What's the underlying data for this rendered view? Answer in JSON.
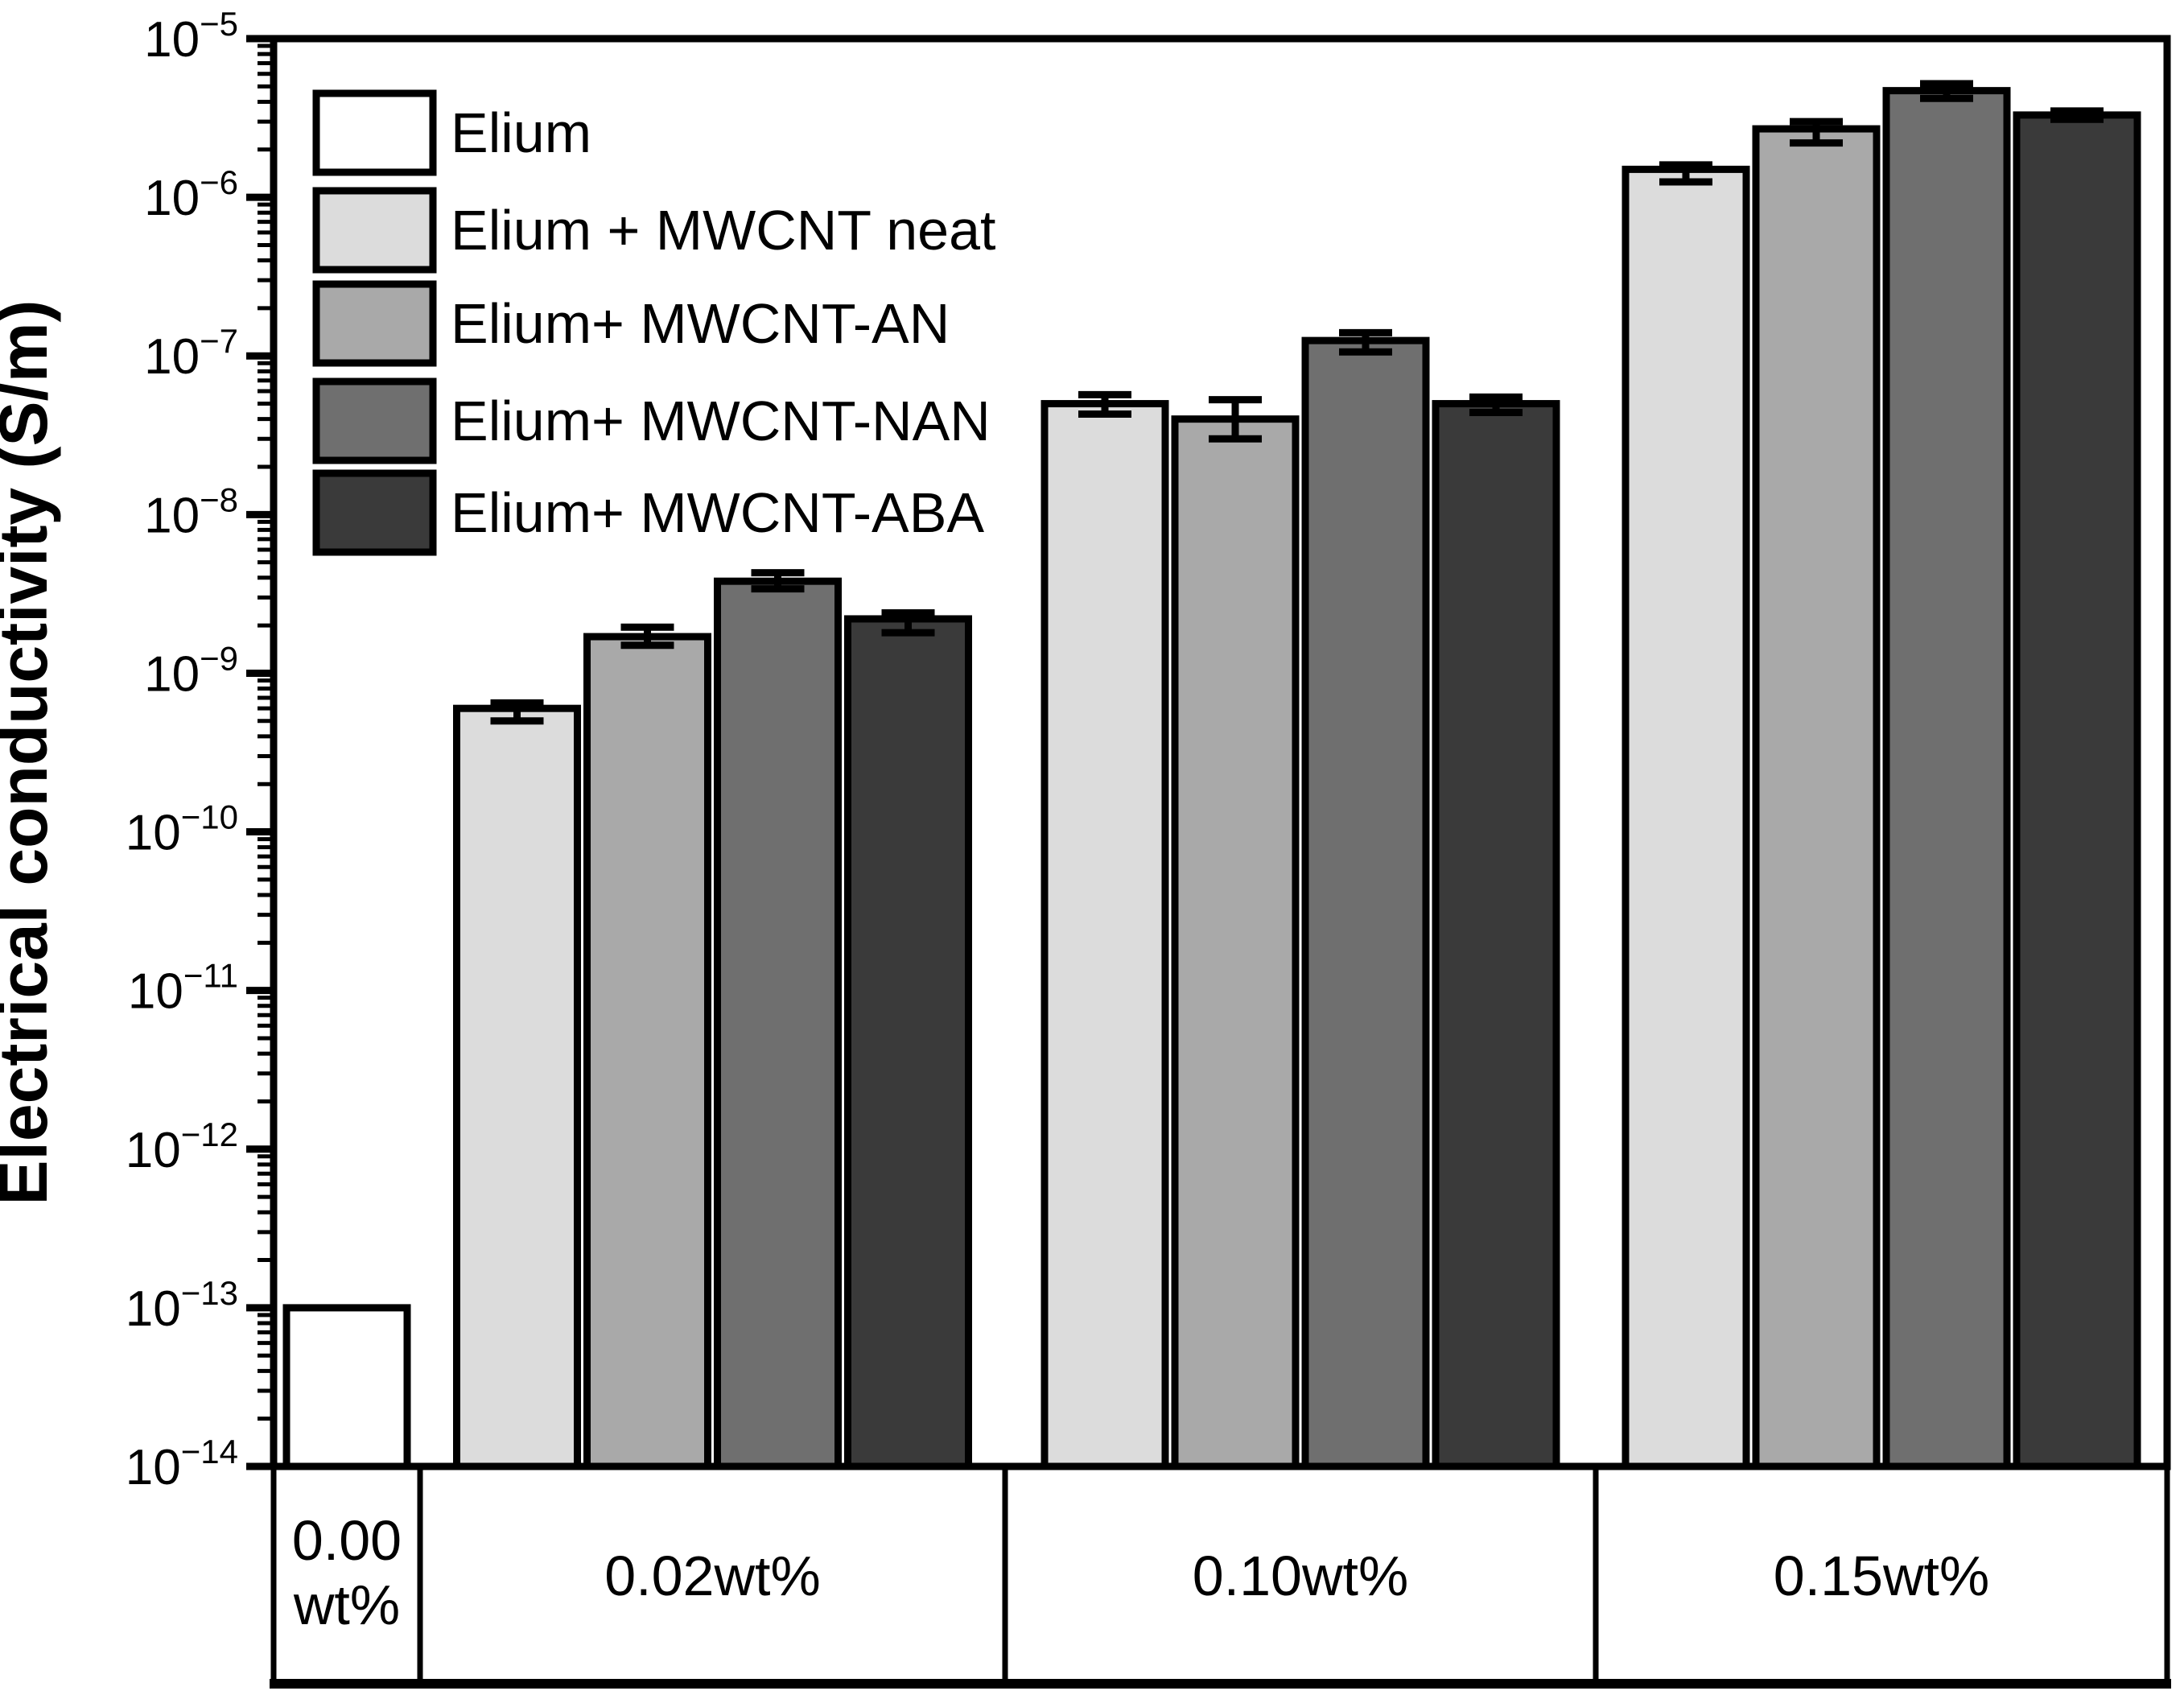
{
  "figure": {
    "kind": "grouped bar chart, logarithmic y axis",
    "background": "#ffffff",
    "frame_color": "#000000"
  },
  "y_axis": {
    "label": "Electrical conductivity (S/m)",
    "scale": "log",
    "max_exponent": -5,
    "min_exponent": -14,
    "tick_exponents": [
      -5,
      -6,
      -7,
      -8,
      -9,
      -10,
      -11,
      -12,
      -13,
      -14
    ],
    "minor_ticks_per_decade": [
      2,
      3,
      4,
      5,
      6,
      7,
      8,
      9
    ]
  },
  "x_axis": {
    "group_labels": [
      "0.00 wt%",
      "0.02wt%",
      "0.10wt%",
      "0.15wt%"
    ],
    "group_label_lines": [
      [
        "0.00",
        "wt%"
      ],
      [
        "0.02wt%"
      ],
      [
        "0.10wt%"
      ],
      [
        "0.15wt%"
      ]
    ]
  },
  "legend": {
    "items": [
      {
        "label": "Elium",
        "color": "#ffffff"
      },
      {
        "label": "Elium + MWCNT neat",
        "color": "#dcdcdc"
      },
      {
        "label": "Elium+ MWCNT-AN",
        "color": "#a9a9a9"
      },
      {
        "label": "Elium+ MWCNT-NAN",
        "color": "#6f6f6f"
      },
      {
        "label": "Elium+ MWCNT-ABA",
        "color": "#3a3a3a"
      }
    ]
  },
  "chart_data": {
    "type": "bar",
    "title": "",
    "xlabel": "",
    "ylabel": "Electrical conductivity (S/m)",
    "yscale": "log",
    "ylim": [
      1e-14,
      1e-05
    ],
    "grid": false,
    "legend_position": "upper-left inside plot",
    "categories": [
      "0.00 wt%",
      "0.02wt%",
      "0.10wt%",
      "0.15wt%"
    ],
    "series": [
      {
        "name": "Elium",
        "short": "elium",
        "color": "#ffffff",
        "values": [
          1e-13,
          null,
          null,
          null
        ]
      },
      {
        "name": "Elium + MWCNT neat",
        "short": "neat",
        "color": "#dcdcdc",
        "values": [
          null,
          6e-10,
          5e-08,
          1.5e-06
        ]
      },
      {
        "name": "Elium+ MWCNT-AN",
        "short": "an",
        "color": "#a9a9a9",
        "values": [
          null,
          1.7e-09,
          4e-08,
          2.7e-06
        ]
      },
      {
        "name": "Elium+ MWCNT-NAN",
        "short": "nan",
        "color": "#6f6f6f",
        "values": [
          null,
          3.8e-09,
          1.25e-07,
          4.7e-06
        ]
      },
      {
        "name": "Elium+ MWCNT-ABA",
        "short": "aba",
        "color": "#3a3a3a",
        "values": [
          null,
          2.2e-09,
          5e-08,
          3.3e-06
        ]
      }
    ],
    "groups": [
      {
        "category": "0.00 wt%",
        "bars": [
          {
            "series_index": 0,
            "value": 1e-13,
            "err_lo": null,
            "err_hi": null
          }
        ]
      },
      {
        "category": "0.02wt%",
        "bars": [
          {
            "series_index": 1,
            "value": 6e-10,
            "err_lo": 5e-10,
            "err_hi": 6.5e-10
          },
          {
            "series_index": 2,
            "value": 1.7e-09,
            "err_lo": 1.5e-09,
            "err_hi": 1.95e-09
          },
          {
            "series_index": 3,
            "value": 3.8e-09,
            "err_lo": 3.4e-09,
            "err_hi": 4.3e-09
          },
          {
            "series_index": 4,
            "value": 2.2e-09,
            "err_lo": 1.8e-09,
            "err_hi": 2.4e-09
          }
        ]
      },
      {
        "category": "0.10wt%",
        "bars": [
          {
            "series_index": 1,
            "value": 5e-08,
            "err_lo": 4.3e-08,
            "err_hi": 5.7e-08
          },
          {
            "series_index": 2,
            "value": 4e-08,
            "err_lo": 3e-08,
            "err_hi": 5.3e-08
          },
          {
            "series_index": 3,
            "value": 1.25e-07,
            "err_lo": 1.06e-07,
            "err_hi": 1.4e-07
          },
          {
            "series_index": 4,
            "value": 5e-08,
            "err_lo": 4.4e-08,
            "err_hi": 5.5e-08
          }
        ]
      },
      {
        "category": "0.15wt%",
        "bars": [
          {
            "series_index": 1,
            "value": 1.5e-06,
            "err_lo": 1.25e-06,
            "err_hi": 1.6e-06
          },
          {
            "series_index": 2,
            "value": 2.7e-06,
            "err_lo": 2.2e-06,
            "err_hi": 3e-06
          },
          {
            "series_index": 3,
            "value": 4.7e-06,
            "err_lo": 4.2e-06,
            "err_hi": 5.2e-06
          },
          {
            "series_index": 4,
            "value": 3.3e-06,
            "err_lo": 3.1e-06,
            "err_hi": 3.5e-06
          }
        ]
      }
    ]
  }
}
